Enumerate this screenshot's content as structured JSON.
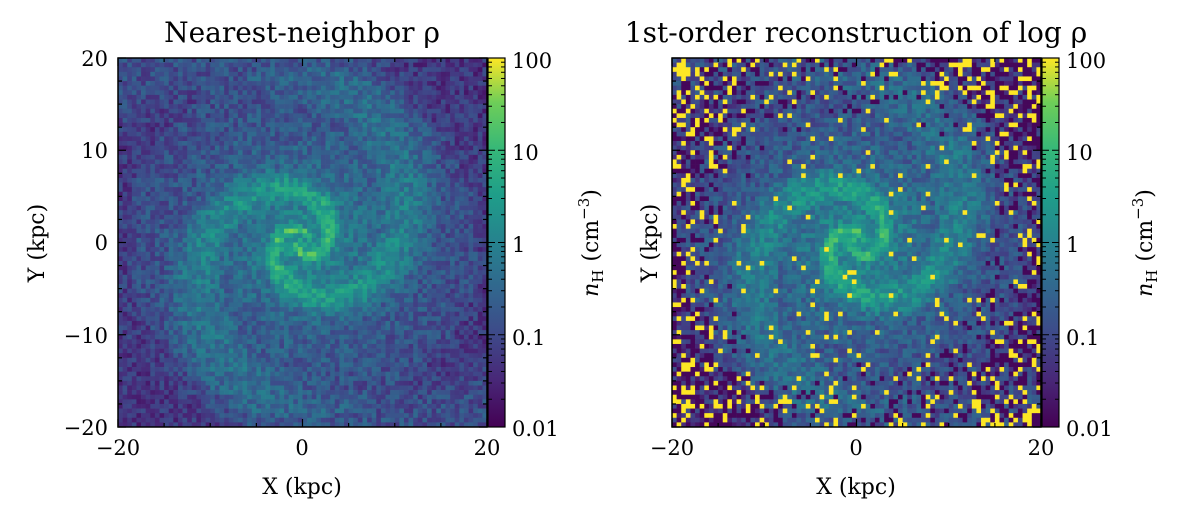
{
  "chart_data": [
    {
      "type": "heatmap",
      "title": "Nearest-neighbor ρ",
      "xlabel": "X (kpc)",
      "ylabel": "Y (kpc)",
      "xlim": [
        -20,
        20
      ],
      "ylim": [
        -20,
        20
      ],
      "x_ticks": [
        -20,
        0,
        20
      ],
      "y_ticks": [
        -20,
        -10,
        0,
        10,
        20
      ],
      "x_tick_labels": [
        "−20",
        "0",
        "20"
      ],
      "y_tick_labels": [
        "−20",
        "−10",
        "0",
        "10",
        "20"
      ],
      "colorbar": {
        "label": "nH (cm−3)",
        "label_main": "n",
        "label_sub": "H",
        "label_unit": "(cm",
        "label_exp": "−3",
        "label_close": ")",
        "scale": "log",
        "range": [
          0.01,
          100
        ],
        "ticks": [
          0.01,
          0.1,
          1,
          10,
          100
        ],
        "tick_labels": [
          "0.01",
          "0.1",
          "1",
          "10",
          "100"
        ],
        "colormap": "viridis"
      }
    },
    {
      "type": "heatmap",
      "title": "1st-order reconstruction of log ρ",
      "xlabel": "X (kpc)",
      "ylabel": "Y (kpc)",
      "xlim": [
        -20,
        20
      ],
      "ylim": [
        -20,
        20
      ],
      "x_ticks": [
        -20,
        0,
        20
      ],
      "x_tick_labels": [
        "−20",
        "0",
        "20"
      ],
      "colorbar": {
        "label": "nH (cm−3)",
        "label_main": "n",
        "label_sub": "H",
        "label_unit": "(cm",
        "label_exp": "−3",
        "label_close": ")",
        "scale": "log",
        "range": [
          0.01,
          100
        ],
        "ticks": [
          0.01,
          0.1,
          1,
          10,
          100
        ],
        "tick_labels": [
          "0.01",
          "0.1",
          "1",
          "10",
          "100"
        ],
        "colormap": "viridis"
      }
    }
  ],
  "colors": {
    "viridis_low": "#440154",
    "viridis_25": "#3b528b",
    "viridis_mid": "#21918c",
    "viridis_75": "#5ec962",
    "viridis_high": "#fde725"
  }
}
